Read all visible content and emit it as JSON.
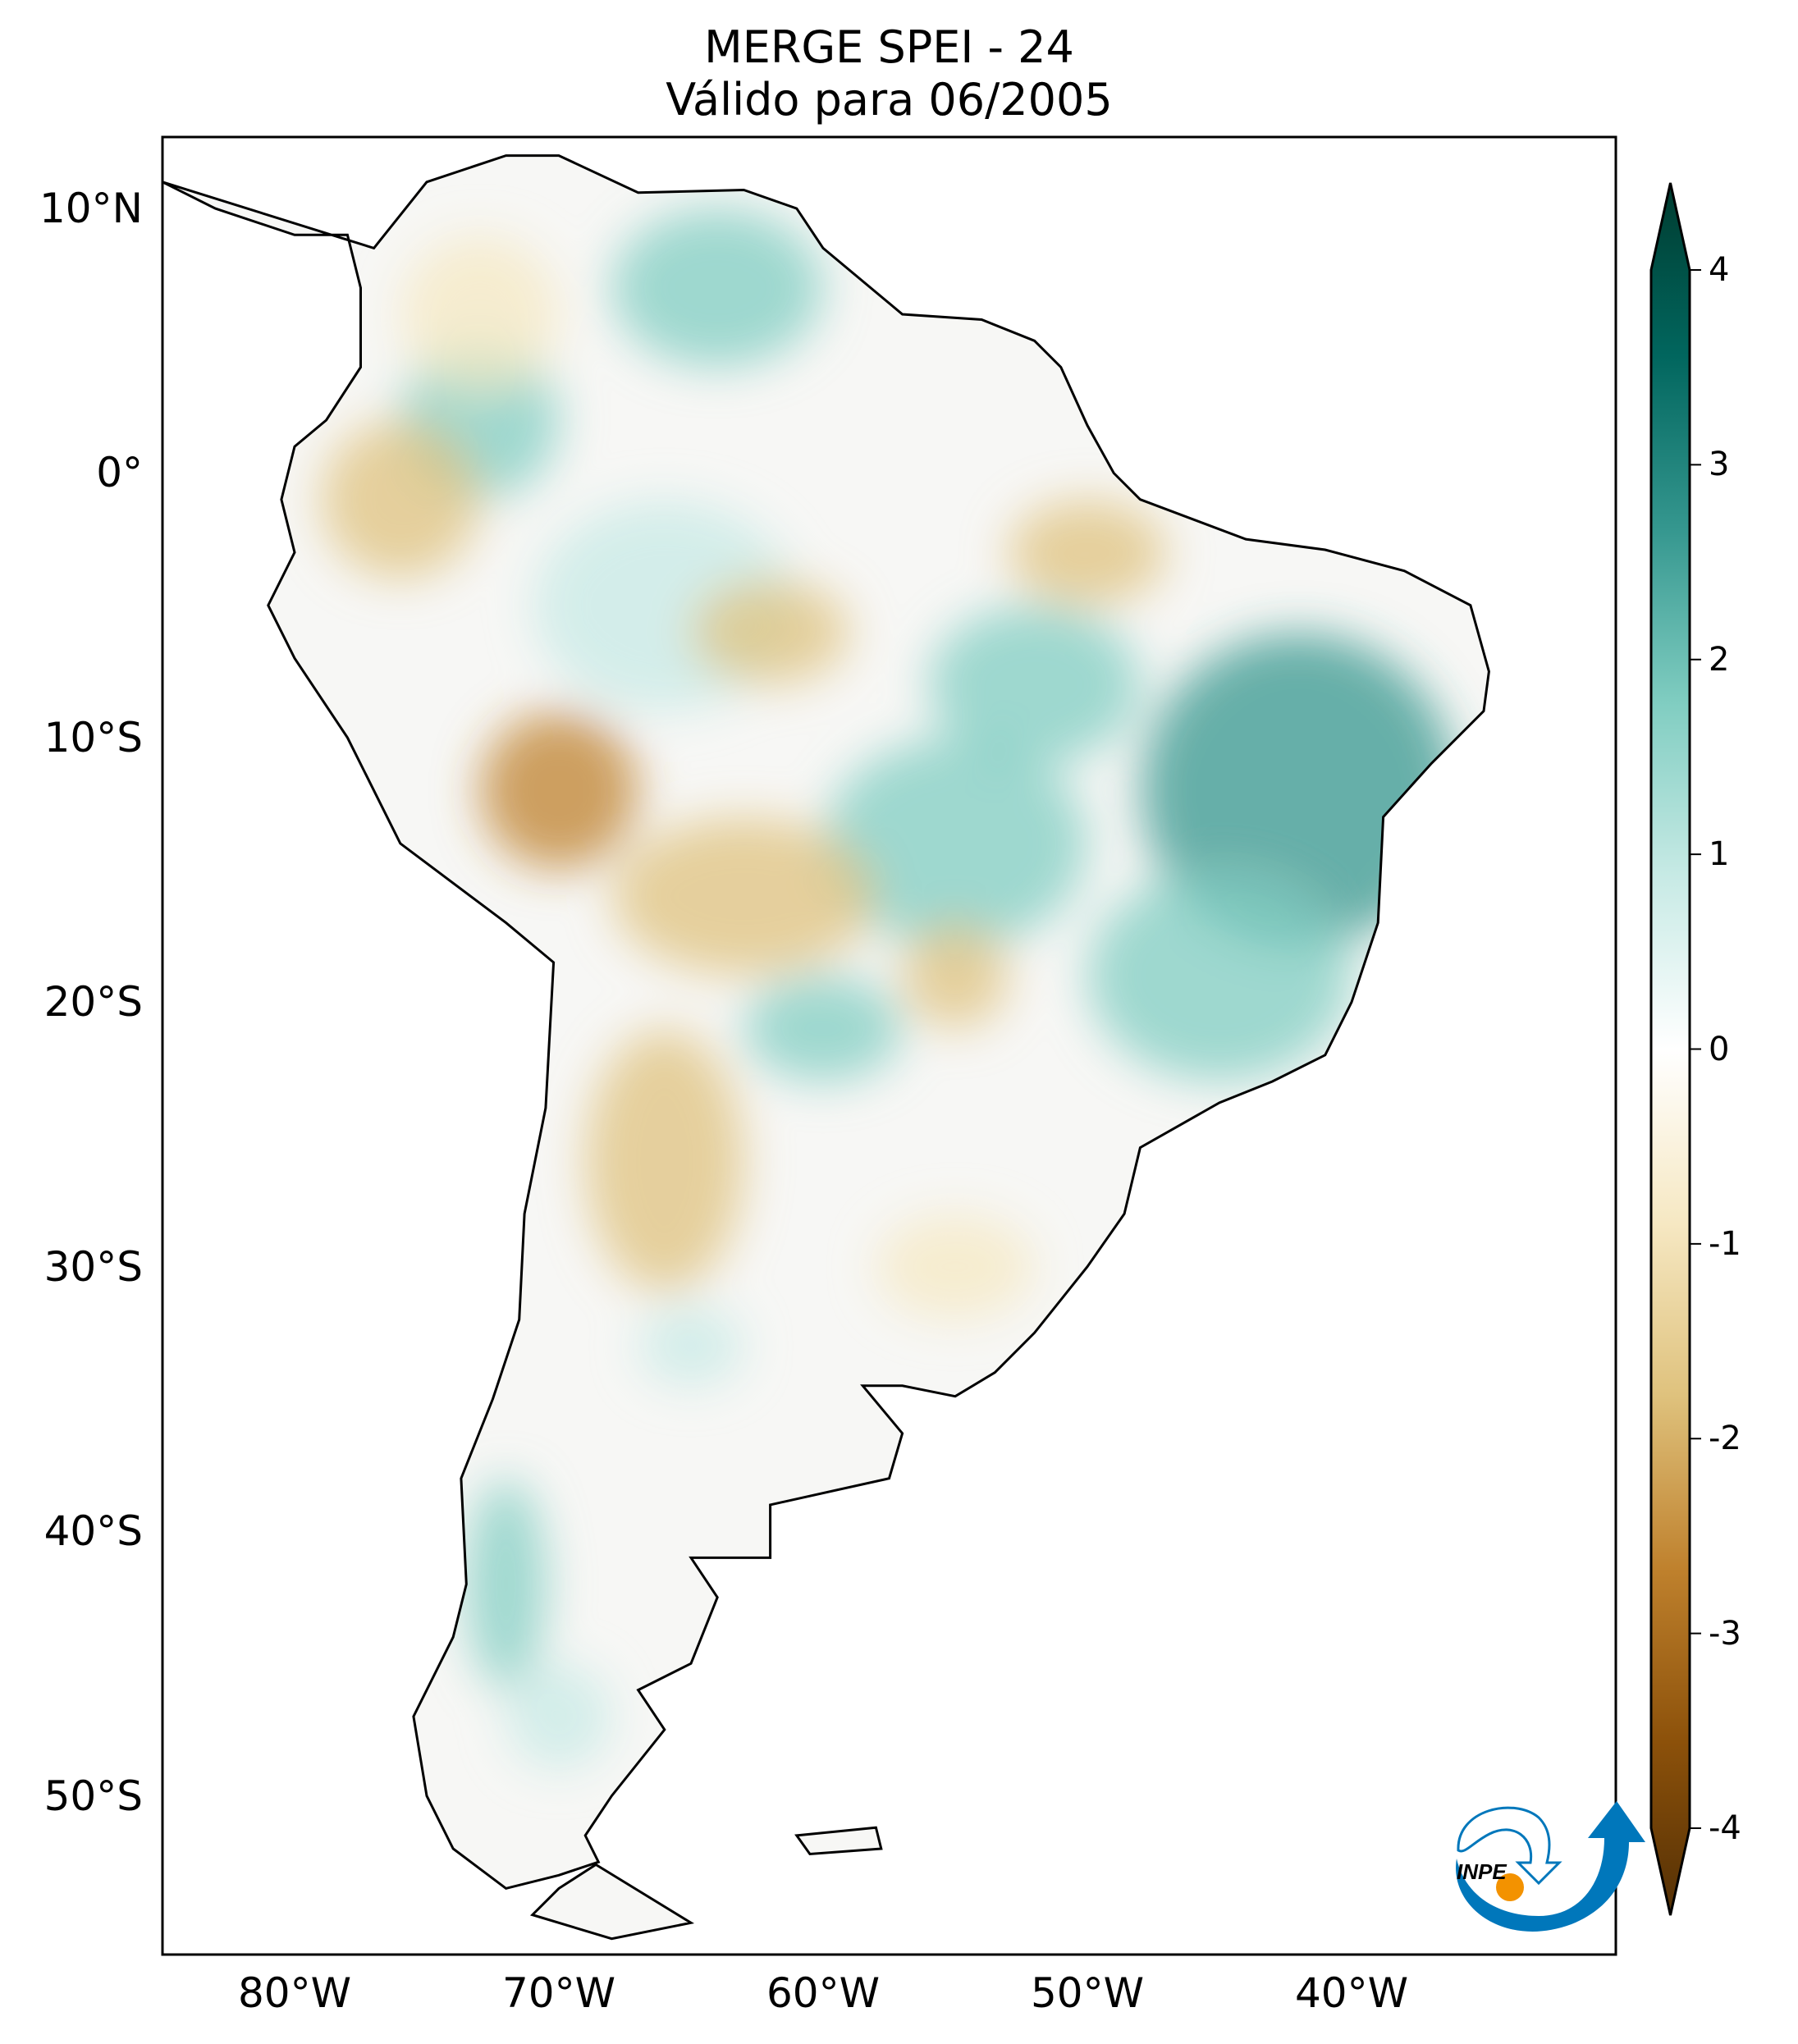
{
  "title": {
    "line1": "MERGE   SPEI - 24",
    "line2": "Válido para 06/2005"
  },
  "axes": {
    "lat_ticks": [
      {
        "value": 10,
        "label": "10°N"
      },
      {
        "value": 0,
        "label": "0°"
      },
      {
        "value": -10,
        "label": "10°S"
      },
      {
        "value": -20,
        "label": "20°S"
      },
      {
        "value": -30,
        "label": "30°S"
      },
      {
        "value": -40,
        "label": "40°S"
      },
      {
        "value": -50,
        "label": "50°S"
      }
    ],
    "lon_ticks": [
      {
        "value": -80,
        "label": "80°W"
      },
      {
        "value": -70,
        "label": "70°W"
      },
      {
        "value": -60,
        "label": "60°W"
      },
      {
        "value": -50,
        "label": "50°W"
      },
      {
        "value": -40,
        "label": "40°W"
      }
    ],
    "lon_range": [
      -85,
      -30
    ],
    "lat_range": [
      -56,
      12.7
    ]
  },
  "colorbar": {
    "range": [
      -4,
      4
    ],
    "extend": "both",
    "ticks": [
      {
        "value": 4,
        "label": "4"
      },
      {
        "value": 3,
        "label": "3"
      },
      {
        "value": 2,
        "label": "2"
      },
      {
        "value": 1,
        "label": "1"
      },
      {
        "value": 0,
        "label": "0"
      },
      {
        "value": -1,
        "label": "-1"
      },
      {
        "value": -2,
        "label": "-2"
      },
      {
        "value": -3,
        "label": "-3"
      },
      {
        "value": -4,
        "label": "-4"
      }
    ],
    "colormap": "BrBG",
    "colors": [
      "#543005",
      "#8c510a",
      "#bf812d",
      "#dfc27d",
      "#f6e8c3",
      "#ffffff",
      "#c7eae5",
      "#80cdc1",
      "#35978f",
      "#01665e",
      "#003c30"
    ]
  },
  "logo": {
    "text": "INPE",
    "blue": "#0077bb",
    "orange": "#f39200"
  }
}
